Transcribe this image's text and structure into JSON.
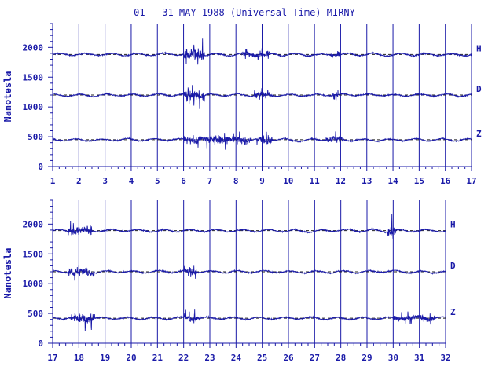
{
  "title": "01 - 31 MAY 1988 (Universal Time) MIRNY",
  "colors": {
    "axis": "#1a1aa8",
    "trace": "#1a1aa8",
    "background": "#ffffff"
  },
  "chart_data": [
    {
      "type": "line",
      "panel": "top",
      "ylabel": "Nanotesla",
      "xlim": [
        1,
        17
      ],
      "ylim": [
        0,
        2400
      ],
      "x_ticks": [
        "1",
        "2",
        "3",
        "4",
        "5",
        "6",
        "7",
        "8",
        "9",
        "10",
        "11",
        "12",
        "13",
        "14",
        "15",
        "16",
        "17"
      ],
      "y_ticks": [
        "0",
        "500",
        "1000",
        "1500",
        "2000"
      ],
      "grid": "vertical lines at each day",
      "series": [
        {
          "name": "H",
          "baseline": 1880,
          "disturbed_days": [
            [
              6,
              6.8,
              220
            ],
            [
              8.2,
              9.3,
              110
            ],
            [
              11.6,
              12,
              90
            ]
          ]
        },
        {
          "name": "D",
          "baseline": 1200,
          "disturbed_days": [
            [
              6,
              6.8,
              180
            ],
            [
              8.7,
              9.4,
              90
            ],
            [
              11.7,
              11.9,
              150
            ]
          ]
        },
        {
          "name": "Z",
          "baseline": 450,
          "disturbed_days": [
            [
              6,
              8.6,
              160
            ],
            [
              8.8,
              9.4,
              160
            ],
            [
              11.4,
              12.1,
              120
            ]
          ]
        }
      ]
    },
    {
      "type": "line",
      "panel": "bottom",
      "ylabel": "Nanotesla",
      "xlim": [
        17,
        32
      ],
      "ylim": [
        0,
        2400
      ],
      "x_ticks": [
        "17",
        "18",
        "19",
        "20",
        "21",
        "22",
        "23",
        "24",
        "25",
        "26",
        "27",
        "28",
        "29",
        "30",
        "31",
        "32"
      ],
      "y_ticks": [
        "0",
        "500",
        "1000",
        "1500",
        "2000"
      ],
      "grid": "vertical lines at each day",
      "series": [
        {
          "name": "H",
          "baseline": 1890,
          "disturbed_days": [
            [
              17.6,
              18.5,
              160
            ],
            [
              29.8,
              30.1,
              200
            ]
          ]
        },
        {
          "name": "D",
          "baseline": 1200,
          "disturbed_days": [
            [
              17.6,
              18.6,
              140
            ],
            [
              22,
              22.5,
              110
            ]
          ]
        },
        {
          "name": "Z",
          "baseline": 420,
          "disturbed_days": [
            [
              17.7,
              18.6,
              200
            ],
            [
              22,
              22.6,
              120
            ],
            [
              30,
              31.6,
              120
            ]
          ]
        }
      ]
    }
  ]
}
